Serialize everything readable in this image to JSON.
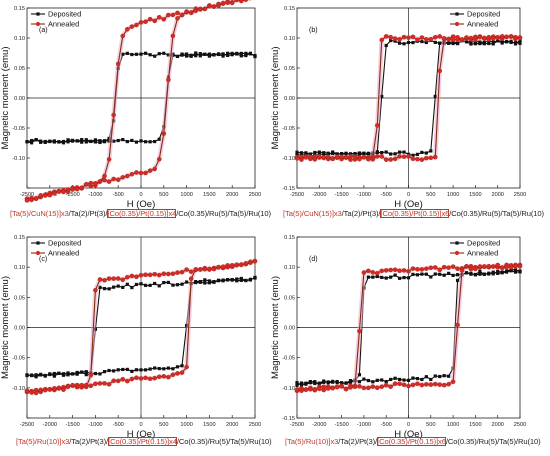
{
  "figure": {
    "colors": {
      "deposited": "#111111",
      "annealed": "#7b2e10",
      "annealed_marker": "#d62b22",
      "highlight": "#c0392b"
    },
    "legend_labels": [
      "Deposited",
      "Annealed"
    ],
    "captions": [
      {
        "parts": [
          {
            "text": "[Ta(5)/CuN(15)]x3",
            "style": "red"
          },
          {
            "text": "/Ta(2)/Pt(3)/",
            "style": "plain"
          },
          {
            "text": "[Co(0.35)/Pt(0.15)]x4",
            "style": "redbox"
          },
          {
            "text": "/Co(0.35)/Ru(5)/Ta(5)/Ru(10)",
            "style": "plain"
          }
        ]
      },
      {
        "parts": [
          {
            "text": "[Ta(5)/CuN(15)]x3",
            "style": "red"
          },
          {
            "text": "/Ta(2)/Pt(3)/",
            "style": "plain"
          },
          {
            "text": "[Co(0.35)/Pt(0.15)]x6",
            "style": "redbox"
          },
          {
            "text": "/Co(0.35)/Ru(5)/Ta(5)/Ru(10)",
            "style": "plain"
          }
        ]
      },
      {
        "parts": [
          {
            "text": "[Ta(5)/Ru(10)]x3",
            "style": "red"
          },
          {
            "text": "/Ta(2)/Pt(3)/",
            "style": "plain"
          },
          {
            "text": "[Co(0.35)/Pt(0.15)]x4",
            "style": "redbox"
          },
          {
            "text": "/Co(0.35)/Ru(5)/Ta(5)/Ru(10)",
            "style": "plain"
          }
        ]
      },
      {
        "parts": [
          {
            "text": "[Ta(5)/Ru(10)]x3",
            "style": "red"
          },
          {
            "text": "/Ta(2)/Pt(3)/",
            "style": "plain"
          },
          {
            "text": "[Co(0.35)/Pt(0.15)]x6",
            "style": "redbox"
          },
          {
            "text": "/Co(0.35)/Ru(5)/Ta(5)/Ru(10)",
            "style": "plain"
          }
        ]
      }
    ]
  },
  "chart_data": [
    {
      "type": "line",
      "panel": "(a)",
      "xlabel": "H (Oe)",
      "ylabel": "Magnetic moment (emu)",
      "xlim": [
        -2500,
        2500
      ],
      "ylim": [
        -0.15,
        0.15
      ],
      "xticks": [
        -2500,
        -2000,
        -1500,
        -1000,
        -500,
        0,
        500,
        1000,
        1500,
        2000,
        2500
      ],
      "yticks": [
        -0.15,
        -0.1,
        -0.05,
        0.0,
        0.05,
        0.1,
        0.15
      ],
      "yticklabels": [
        "",
        "-0.10",
        "-0.05",
        "0.00",
        "0.05",
        "0.10",
        "0.15"
      ],
      "legend_position": "top-left",
      "series": [
        {
          "name": "Deposited",
          "hc": 560,
          "ms": 0.072,
          "width": 70,
          "lin": 0.0
        },
        {
          "name": "Annealed",
          "hc": 580,
          "ms": 0.125,
          "width": 130,
          "lin": 1.8e-05
        }
      ]
    },
    {
      "type": "line",
      "panel": "(b)",
      "xlabel": "H (Oe)",
      "ylabel": "Magnetic moment (emu)",
      "xlim": [
        -2500,
        2500
      ],
      "ylim": [
        -0.15,
        0.15
      ],
      "xticks": [
        -2500,
        -2000,
        -1500,
        -1000,
        -500,
        0,
        500,
        1000,
        1500,
        2000,
        2500
      ],
      "yticks": [
        -0.15,
        -0.1,
        -0.05,
        0.0,
        0.05,
        0.1,
        0.15
      ],
      "yticklabels": [
        "-0.15",
        "-0.10",
        "-0.05",
        "0.00",
        "0.05",
        "0.10",
        "0.15"
      ],
      "legend_position": "top-right",
      "series": [
        {
          "name": "Deposited",
          "hc": 600,
          "ms": 0.093,
          "width": 50,
          "lin": 0.0
        },
        {
          "name": "Annealed",
          "hc": 680,
          "ms": 0.1,
          "width": 40,
          "lin": 0.0
        }
      ]
    },
    {
      "type": "line",
      "panel": "(c)",
      "xlabel": "H (Oe)",
      "ylabel": "Magnetic moment (emu)",
      "xlim": [
        -2500,
        2500
      ],
      "ylim": [
        -0.15,
        0.15
      ],
      "xticks": [
        -2500,
        -2000,
        -1500,
        -1000,
        -500,
        0,
        500,
        1000,
        1500,
        2000,
        2500
      ],
      "yticks": [
        -0.15,
        -0.1,
        -0.05,
        0.0,
        0.05,
        0.1,
        0.15
      ],
      "yticklabels": [
        "",
        "-0.10",
        "-0.05",
        "0.00",
        "0.05",
        "0.10",
        "0.15"
      ],
      "legend_position": "top-left",
      "series": [
        {
          "name": "Deposited",
          "hc": 1000,
          "ms": 0.07,
          "width": 40,
          "lin": 4.5e-06
        },
        {
          "name": "Annealed",
          "hc": 1050,
          "ms": 0.085,
          "width": 40,
          "lin": 9e-06
        }
      ]
    },
    {
      "type": "line",
      "panel": "(d)",
      "xlabel": "H (Oe)",
      "ylabel": "Magnetic moment (emu)",
      "xlim": [
        -2500,
        2500
      ],
      "ylim": [
        -0.15,
        0.15
      ],
      "xticks": [
        -2500,
        -2000,
        -1500,
        -1000,
        -500,
        0,
        500,
        1000,
        1500,
        2000,
        2500
      ],
      "yticks": [
        -0.15,
        -0.1,
        -0.05,
        0.0,
        0.05,
        0.1,
        0.15
      ],
      "yticklabels": [
        "-0.15",
        "-0.10",
        "-0.05",
        "0.00",
        "0.05",
        "0.10",
        "0.15"
      ],
      "legend_position": "top-right",
      "series": [
        {
          "name": "Deposited",
          "hc": 1050,
          "ms": 0.085,
          "width": 40,
          "lin": 3.5e-06
        },
        {
          "name": "Annealed",
          "hc": 1100,
          "ms": 0.095,
          "width": 40,
          "lin": 3e-06
        }
      ]
    }
  ]
}
